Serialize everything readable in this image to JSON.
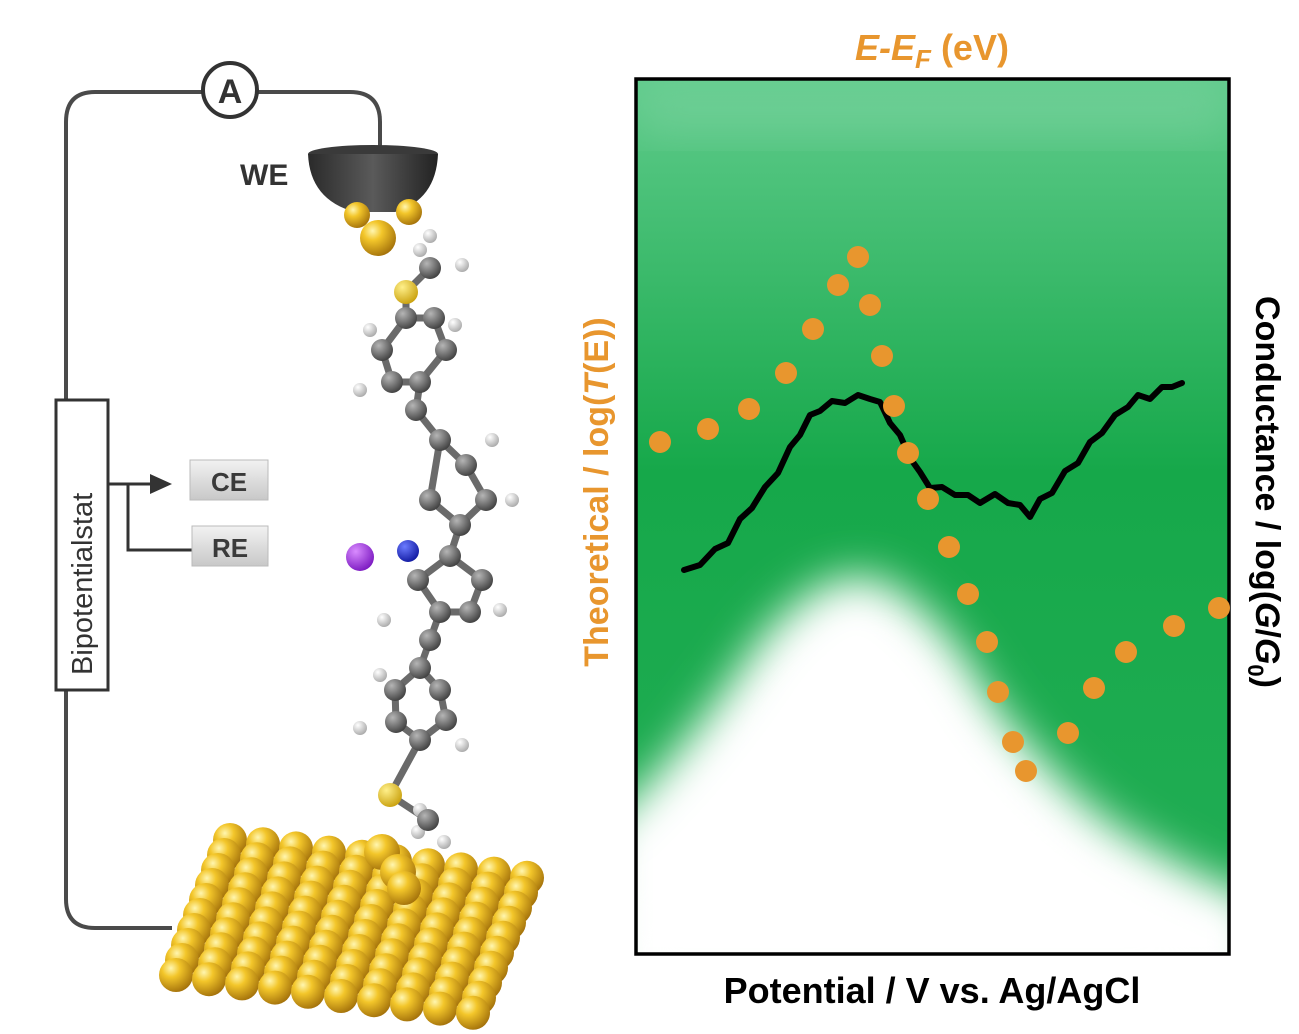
{
  "circuit": {
    "ammeter_label": "A",
    "we_label": "WE",
    "instrument_label": "Bipotentialstat",
    "ce_label": "CE",
    "re_label": "RE"
  },
  "plot": {
    "top_axis_title_main": "E-E",
    "top_axis_title_sub": "F",
    "top_axis_title_unit": " (eV)",
    "left_axis_title_pre": "Theoretical / log(",
    "left_axis_title_T": "T",
    "left_axis_title_post": "(E))",
    "right_axis_title_pre": "Conductance / log(",
    "right_axis_title_G": "G",
    "right_axis_title_slash": "/",
    "right_axis_title_G0": "G",
    "right_axis_title_0": "0",
    "right_axis_title_post": ")",
    "bottom_axis_title": "Potential / V vs. Ag/AgCl"
  },
  "colors": {
    "orange": "#E8962E",
    "green": "#18A94A",
    "black_trace": "#000000",
    "gold": "#E3B21E",
    "wire": "#4A4A4A"
  }
}
